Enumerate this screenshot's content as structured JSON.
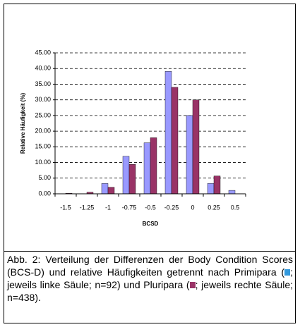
{
  "chart_data": {
    "type": "bar",
    "categories": [
      "-1.5",
      "-1.25",
      "-1",
      "-0.75",
      "-0.5",
      "-0.25",
      "0",
      "0.25",
      "0.5"
    ],
    "series": [
      {
        "color": "#9999ff",
        "values": [
          0,
          0,
          3.3,
          12,
          16.3,
          39.1,
          25,
          3.3,
          1.1
        ]
      },
      {
        "color": "#993366",
        "values": [
          0.2,
          0.5,
          2.1,
          9.4,
          17.9,
          34,
          30,
          5.7,
          0
        ]
      }
    ],
    "xlabel": "BCSD",
    "ylabel": "Relative Häufigkeit (%)",
    "ylim": [
      0,
      45
    ],
    "yticks": [
      {
        "value": 0,
        "label": "0.00"
      },
      {
        "value": 5,
        "label": "5.00"
      },
      {
        "value": 10,
        "label": "10.00"
      },
      {
        "value": 15,
        "label": "15.00"
      },
      {
        "value": 20,
        "label": "20.00"
      },
      {
        "value": 25,
        "label": "25.00"
      },
      {
        "value": 30,
        "label": "30.00"
      },
      {
        "value": 35,
        "label": "35.00"
      },
      {
        "value": 40,
        "label": "40.00"
      },
      {
        "value": 45,
        "label": "45.00"
      }
    ],
    "grid": true
  },
  "caption": {
    "parts": [
      "Abb. 2: Verteilung der Differenzen der Body Condition Scores (BCS-D) und relative Häufigkeiten getrennt nach Primipara (",
      "; jeweils linke Säule; n=92) und Pluripara (",
      "; jeweils rechte Säule; n=438)."
    ]
  }
}
